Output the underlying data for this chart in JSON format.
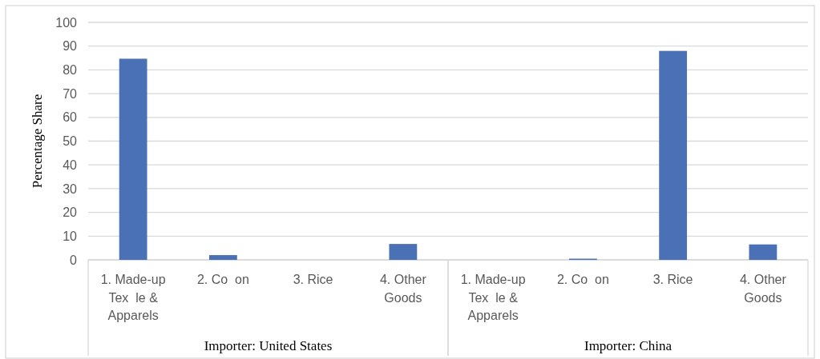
{
  "chart_data": [
    {
      "type": "bar",
      "ylabel": "Percentage Share",
      "xlabel": "Importer: United States",
      "categories": [
        "1. Made-up Tex  le & Apparels",
        "2. Co  on",
        "3. Rice",
        "4. Other Goods"
      ],
      "values": [
        84.7,
        2,
        0,
        6.7
      ],
      "color": "#4a70b5",
      "ylim": [
        0,
        100
      ],
      "yticks": [
        0,
        10,
        20,
        30,
        40,
        50,
        60,
        70,
        80,
        90,
        100
      ],
      "grid": "y"
    },
    {
      "type": "bar",
      "xlabel": "Importer: China",
      "categories": [
        "1. Made-up Tex  le & Apparels",
        "2. Co  on",
        "3. Rice",
        "4. Other Goods"
      ],
      "values": [
        0,
        0.5,
        88,
        6.5
      ],
      "color": "#4a70b5",
      "ylim": [
        0,
        100
      ],
      "yticks": [
        0,
        10,
        20,
        30,
        40,
        50,
        60,
        70,
        80,
        90,
        100
      ],
      "grid": "y",
      "tick_labels": "x"
    }
  ]
}
